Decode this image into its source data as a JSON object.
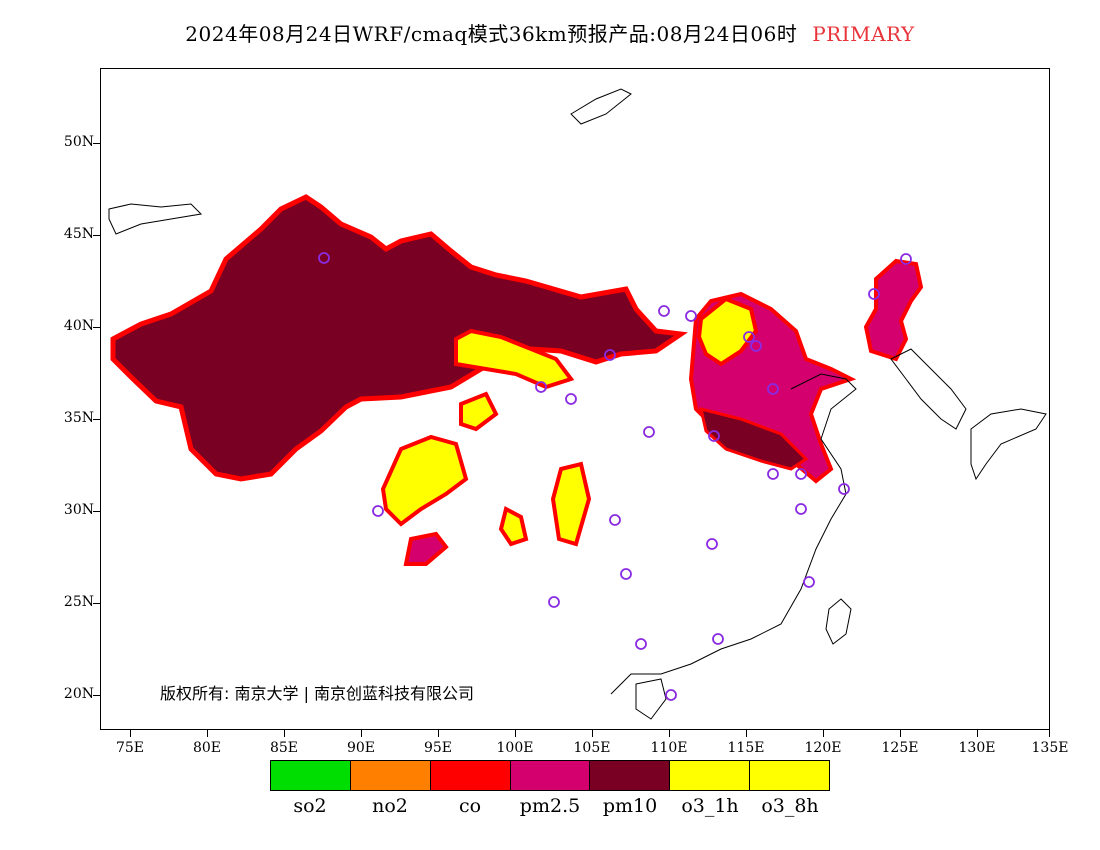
{
  "title": {
    "main": "2024年08月24日WRF/cmaq模式36km预报产品:08月24日06时",
    "product": "PRIMARY"
  },
  "axes": {
    "lat_labels": [
      "50N",
      "45N",
      "40N",
      "35N",
      "30N",
      "25N",
      "20N"
    ],
    "lon_labels": [
      "75E",
      "80E",
      "85E",
      "90E",
      "95E",
      "100E",
      "105E",
      "110E",
      "115E",
      "120E",
      "125E",
      "130E",
      "135E"
    ]
  },
  "copyright": "版权所有: 南京大学 | 南京创蓝科技有限公司",
  "legend": {
    "items": [
      {
        "label": "so2",
        "color": "#00dd00"
      },
      {
        "label": "no2",
        "color": "#ff8000"
      },
      {
        "label": "co",
        "color": "#ff0000"
      },
      {
        "label": "pm2.5",
        "color": "#d3006e"
      },
      {
        "label": "pm10",
        "color": "#7a0023"
      },
      {
        "label": "o3_1h",
        "color": "#ffff00"
      },
      {
        "label": "o3_8h",
        "color": "#ffff00"
      }
    ]
  },
  "colors": {
    "station_marker": "#8a2be2",
    "coastline": "#000000"
  }
}
